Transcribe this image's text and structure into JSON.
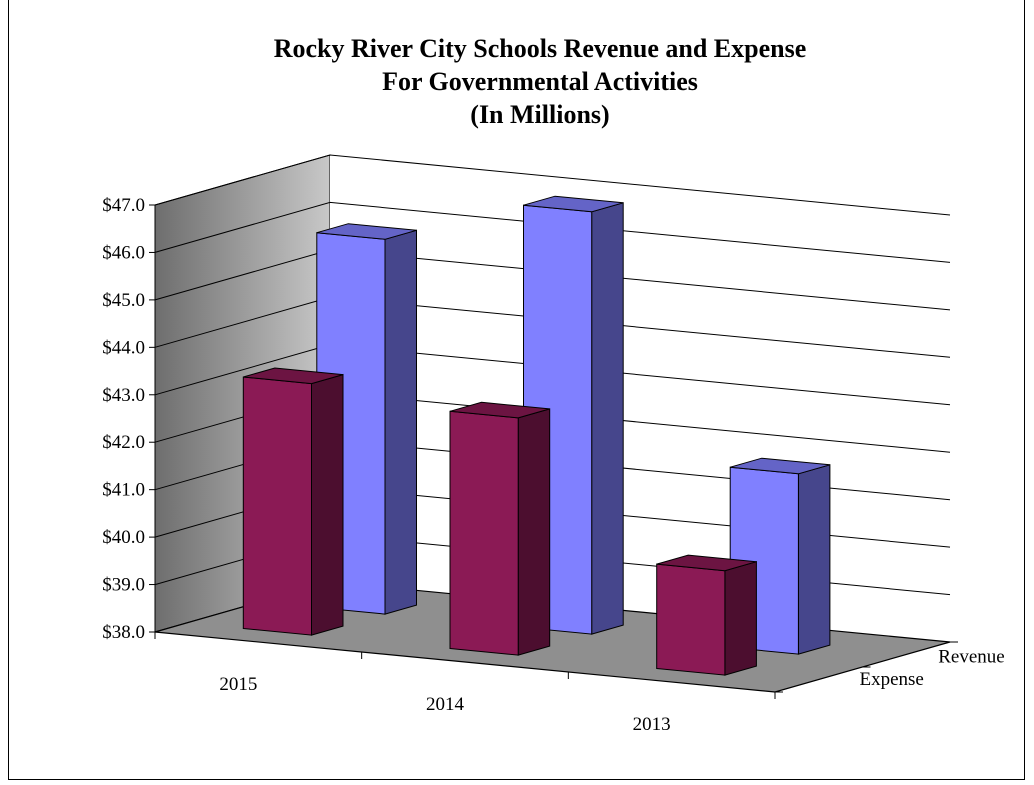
{
  "chart_data": {
    "type": "bar",
    "title": "Rocky River City Schools Revenue and Expense",
    "subtitle": "For Governmental Activities",
    "units_note": "(In Millions)",
    "categories": [
      "2015",
      "2014",
      "2013"
    ],
    "series": [
      {
        "name": "Expense",
        "values": [
          43.3,
          43.0,
          40.2
        ],
        "color": "#8b1a55"
      },
      {
        "name": "Revenue",
        "values": [
          45.9,
          46.9,
          41.8
        ],
        "color": "#8080ff"
      }
    ],
    "ylim": [
      38.0,
      47.0
    ],
    "y_ticks": [
      "$38.0",
      "$39.0",
      "$40.0",
      "$41.0",
      "$42.0",
      "$43.0",
      "$44.0",
      "$45.0",
      "$46.0",
      "$47.0"
    ],
    "depth_labels": [
      "Revenue",
      "Expense"
    ],
    "style": "3d-clustered-column",
    "grid": true
  }
}
